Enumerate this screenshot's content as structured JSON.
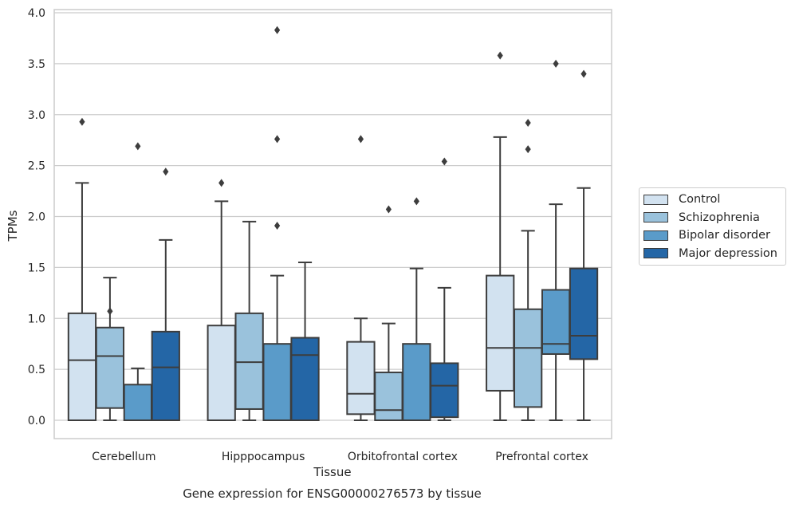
{
  "chart_data": {
    "type": "box",
    "caption": "Gene expression for ENSG00000276573 by tissue",
    "xlabel": "Tissue",
    "ylabel": "TPMs",
    "ylim": [
      -0.18,
      4.03
    ],
    "yticks": [
      0.0,
      0.5,
      1.0,
      1.5,
      2.0,
      2.5,
      3.0,
      3.5,
      4.0
    ],
    "ytick_labels": [
      "0.0",
      "0.5",
      "1.0",
      "1.5",
      "2.0",
      "2.5",
      "3.0",
      "3.5",
      "4.0"
    ],
    "grid": true,
    "legend_position": "right",
    "categories": [
      "Cerebellum",
      "Hipppocampus",
      "Orbitofrontal cortex",
      "Prefrontal cortex"
    ],
    "series": [
      {
        "name": "Control",
        "color": "#d2e2f0",
        "boxes": [
          {
            "whislo": 0.0,
            "q1": 0.0,
            "med": 0.59,
            "q3": 1.05,
            "whishi": 2.33,
            "fliers": [
              2.93
            ]
          },
          {
            "whislo": 0.0,
            "q1": 0.0,
            "med": 0.0,
            "q3": 0.93,
            "whishi": 2.15,
            "fliers": [
              2.33
            ]
          },
          {
            "whislo": 0.0,
            "q1": 0.06,
            "med": 0.26,
            "q3": 0.77,
            "whishi": 1.0,
            "fliers": [
              2.76
            ]
          },
          {
            "whislo": 0.0,
            "q1": 0.29,
            "med": 0.71,
            "q3": 1.42,
            "whishi": 2.78,
            "fliers": [
              3.58
            ]
          }
        ]
      },
      {
        "name": "Schizophrenia",
        "color": "#9ac2dc",
        "boxes": [
          {
            "whislo": 0.0,
            "q1": 0.12,
            "med": 0.63,
            "q3": 0.91,
            "whishi": 1.4,
            "fliers": [
              1.07
            ]
          },
          {
            "whislo": 0.0,
            "q1": 0.11,
            "med": 0.57,
            "q3": 1.05,
            "whishi": 1.95,
            "fliers": []
          },
          {
            "whislo": 0.0,
            "q1": 0.0,
            "med": 0.1,
            "q3": 0.47,
            "whishi": 0.95,
            "fliers": [
              2.07
            ]
          },
          {
            "whislo": 0.0,
            "q1": 0.13,
            "med": 0.71,
            "q3": 1.09,
            "whishi": 1.86,
            "fliers": [
              2.66,
              2.92
            ]
          }
        ]
      },
      {
        "name": "Bipolar disorder",
        "color": "#5a9bc9",
        "boxes": [
          {
            "whislo": 0.0,
            "q1": 0.0,
            "med": 0.0,
            "q3": 0.35,
            "whishi": 0.51,
            "fliers": [
              2.69
            ]
          },
          {
            "whislo": 0.0,
            "q1": 0.0,
            "med": 0.0,
            "q3": 0.75,
            "whishi": 1.42,
            "fliers": [
              1.91,
              2.76,
              3.83
            ]
          },
          {
            "whislo": 0.0,
            "q1": 0.0,
            "med": 0.0,
            "q3": 0.75,
            "whishi": 1.49,
            "fliers": [
              2.15
            ]
          },
          {
            "whislo": 0.0,
            "q1": 0.65,
            "med": 0.75,
            "q3": 1.28,
            "whishi": 2.12,
            "fliers": [
              3.5
            ]
          }
        ]
      },
      {
        "name": "Major depression",
        "color": "#2466a6",
        "boxes": [
          {
            "whislo": 0.0,
            "q1": 0.0,
            "med": 0.52,
            "q3": 0.87,
            "whishi": 1.77,
            "fliers": [
              2.44
            ]
          },
          {
            "whislo": 0.0,
            "q1": 0.0,
            "med": 0.64,
            "q3": 0.81,
            "whishi": 1.55,
            "fliers": []
          },
          {
            "whislo": 0.0,
            "q1": 0.03,
            "med": 0.34,
            "q3": 0.56,
            "whishi": 1.3,
            "fliers": [
              2.54
            ]
          },
          {
            "whislo": 0.0,
            "q1": 0.6,
            "med": 0.83,
            "q3": 1.49,
            "whishi": 2.28,
            "fliers": [
              3.4
            ]
          }
        ]
      }
    ]
  }
}
